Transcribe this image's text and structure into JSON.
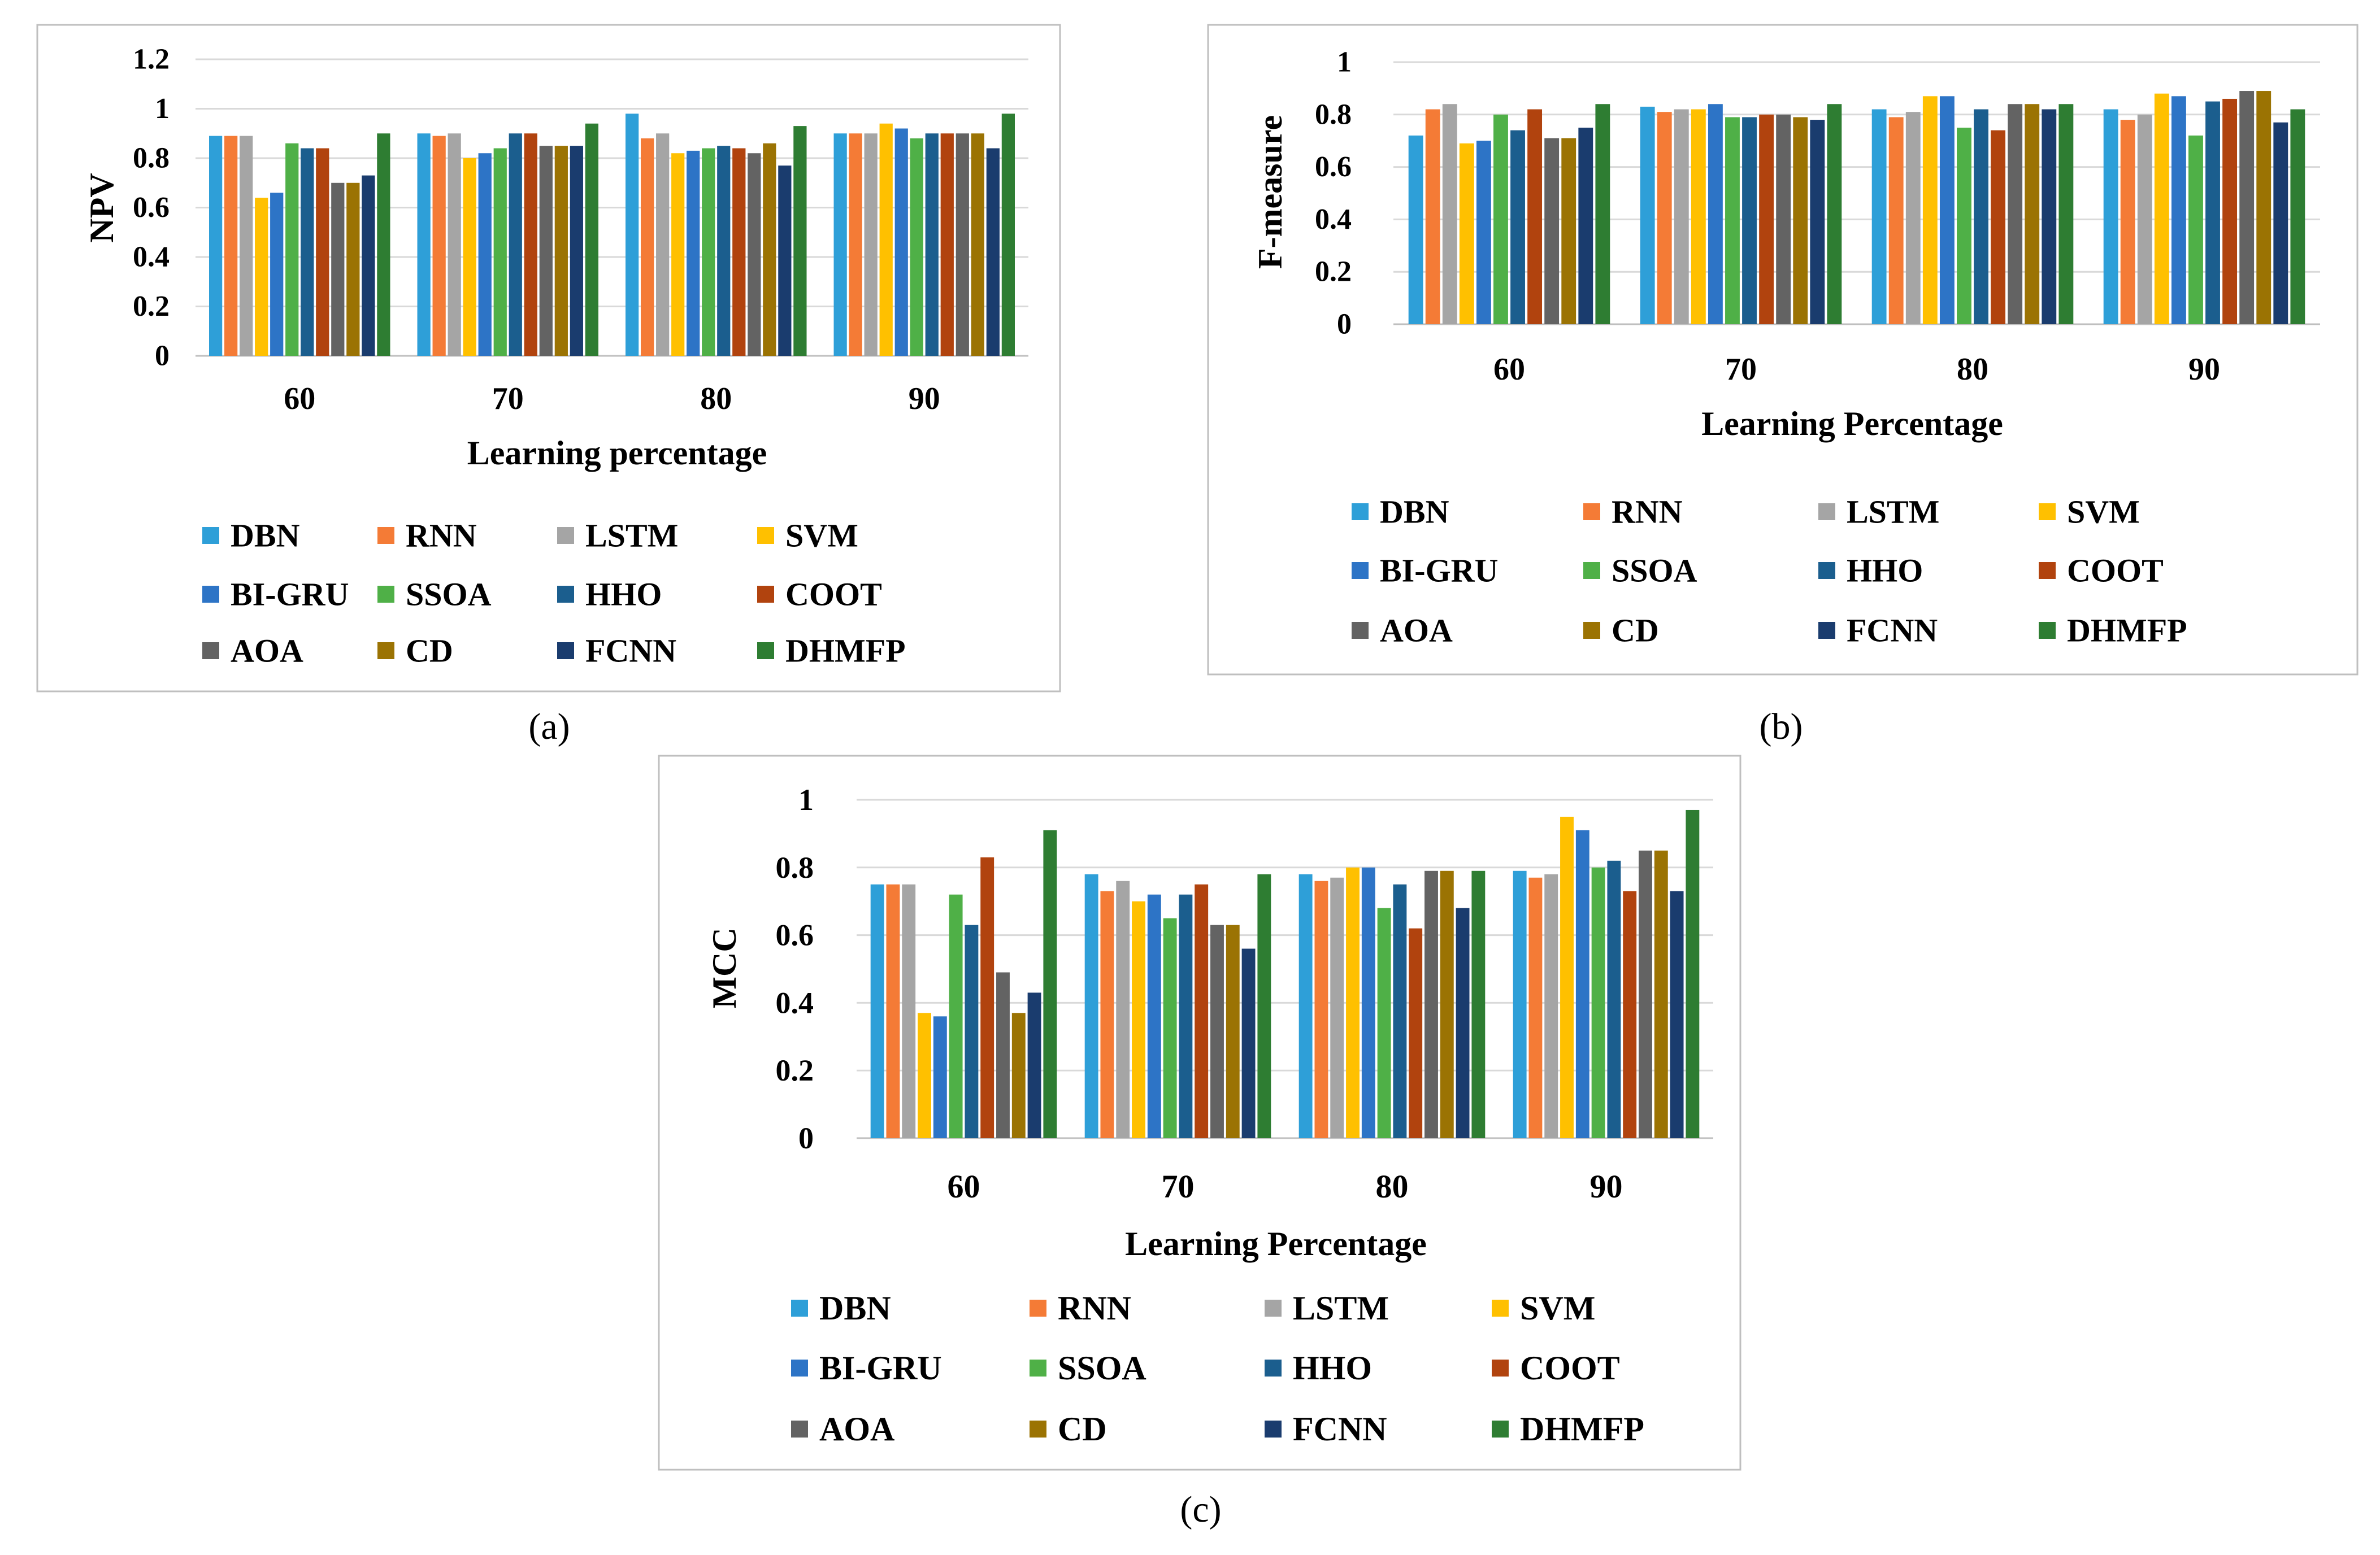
{
  "series_names": [
    "DBN",
    "RNN",
    "LSTM",
    "SVM",
    "BI-GRU",
    "SSOA",
    "HHO",
    "COOT",
    "AOA",
    "CD",
    "FCNN",
    "DHMFP"
  ],
  "series_colors": [
    "#2E9FD8",
    "#F47B36",
    "#A5A5A5",
    "#FFC000",
    "#2D74C6",
    "#4FB047",
    "#1B5E8E",
    "#B1430E",
    "#636363",
    "#9B7303",
    "#1A3C6E",
    "#2E7D32"
  ],
  "chart_data": [
    {
      "type": "bar",
      "panel": "(a)",
      "title": "",
      "xlabel": "Learning percentage",
      "ylabel": "NPV",
      "categories": [
        "60",
        "70",
        "80",
        "90"
      ],
      "ylim": [
        0,
        1.2
      ],
      "yticks": [
        "0",
        "0.2",
        "0.4",
        "0.6",
        "0.8",
        "1",
        "1.2"
      ],
      "legend_position": "bottom",
      "series": [
        {
          "name": "DBN",
          "values": [
            0.89,
            0.9,
            0.98,
            0.9
          ]
        },
        {
          "name": "RNN",
          "values": [
            0.89,
            0.89,
            0.88,
            0.9
          ]
        },
        {
          "name": "LSTM",
          "values": [
            0.89,
            0.9,
            0.9,
            0.9
          ]
        },
        {
          "name": "SVM",
          "values": [
            0.64,
            0.8,
            0.82,
            0.94
          ]
        },
        {
          "name": "BI-GRU",
          "values": [
            0.66,
            0.82,
            0.83,
            0.92
          ]
        },
        {
          "name": "SSOA",
          "values": [
            0.86,
            0.84,
            0.84,
            0.88
          ]
        },
        {
          "name": "HHO",
          "values": [
            0.84,
            0.9,
            0.85,
            0.9
          ]
        },
        {
          "name": "COOT",
          "values": [
            0.84,
            0.9,
            0.84,
            0.9
          ]
        },
        {
          "name": "AOA",
          "values": [
            0.7,
            0.85,
            0.82,
            0.9
          ]
        },
        {
          "name": "CD",
          "values": [
            0.7,
            0.85,
            0.86,
            0.9
          ]
        },
        {
          "name": "FCNN",
          "values": [
            0.73,
            0.85,
            0.77,
            0.84
          ]
        },
        {
          "name": "DHMFP",
          "values": [
            0.9,
            0.94,
            0.93,
            0.98
          ]
        }
      ]
    },
    {
      "type": "bar",
      "panel": "(b)",
      "title": "",
      "xlabel": "Learning Percentage",
      "ylabel": "F-measure",
      "categories": [
        "60",
        "70",
        "80",
        "90"
      ],
      "ylim": [
        0,
        1
      ],
      "yticks": [
        "0",
        "0.2",
        "0.4",
        "0.6",
        "0.8",
        "1"
      ],
      "legend_position": "bottom",
      "series": [
        {
          "name": "DBN",
          "values": [
            0.72,
            0.83,
            0.82,
            0.82
          ]
        },
        {
          "name": "RNN",
          "values": [
            0.82,
            0.81,
            0.79,
            0.78
          ]
        },
        {
          "name": "LSTM",
          "values": [
            0.84,
            0.82,
            0.81,
            0.8
          ]
        },
        {
          "name": "SVM",
          "values": [
            0.69,
            0.82,
            0.87,
            0.88
          ]
        },
        {
          "name": "BI-GRU",
          "values": [
            0.7,
            0.84,
            0.87,
            0.87
          ]
        },
        {
          "name": "SSOA",
          "values": [
            0.8,
            0.79,
            0.75,
            0.72
          ]
        },
        {
          "name": "HHO",
          "values": [
            0.74,
            0.79,
            0.82,
            0.85
          ]
        },
        {
          "name": "COOT",
          "values": [
            0.82,
            0.8,
            0.74,
            0.86
          ]
        },
        {
          "name": "AOA",
          "values": [
            0.71,
            0.8,
            0.84,
            0.89
          ]
        },
        {
          "name": "CD",
          "values": [
            0.71,
            0.79,
            0.84,
            0.89
          ]
        },
        {
          "name": "FCNN",
          "values": [
            0.75,
            0.78,
            0.82,
            0.77
          ]
        },
        {
          "name": "DHMFP",
          "values": [
            0.84,
            0.84,
            0.84,
            0.82
          ]
        }
      ]
    },
    {
      "type": "bar",
      "panel": "(c)",
      "title": "",
      "xlabel": "Learning Percentage",
      "ylabel": "MCC",
      "categories": [
        "60",
        "70",
        "80",
        "90"
      ],
      "ylim": [
        0,
        1
      ],
      "yticks": [
        "0",
        "0.2",
        "0.4",
        "0.6",
        "0.8",
        "1"
      ],
      "legend_position": "bottom",
      "series": [
        {
          "name": "DBN",
          "values": [
            0.75,
            0.78,
            0.78,
            0.79
          ]
        },
        {
          "name": "RNN",
          "values": [
            0.75,
            0.73,
            0.76,
            0.77
          ]
        },
        {
          "name": "LSTM",
          "values": [
            0.75,
            0.76,
            0.77,
            0.78
          ]
        },
        {
          "name": "SVM",
          "values": [
            0.37,
            0.7,
            0.8,
            0.95
          ]
        },
        {
          "name": "BI-GRU",
          "values": [
            0.36,
            0.72,
            0.8,
            0.91
          ]
        },
        {
          "name": "SSOA",
          "values": [
            0.72,
            0.65,
            0.68,
            0.8
          ]
        },
        {
          "name": "HHO",
          "values": [
            0.63,
            0.72,
            0.75,
            0.82
          ]
        },
        {
          "name": "COOT",
          "values": [
            0.83,
            0.75,
            0.62,
            0.73
          ]
        },
        {
          "name": "AOA",
          "values": [
            0.49,
            0.63,
            0.79,
            0.85
          ]
        },
        {
          "name": "CD",
          "values": [
            0.37,
            0.63,
            0.79,
            0.85
          ]
        },
        {
          "name": "FCNN",
          "values": [
            0.43,
            0.56,
            0.68,
            0.73
          ]
        },
        {
          "name": "DHMFP",
          "values": [
            0.91,
            0.78,
            0.79,
            0.97
          ]
        }
      ]
    }
  ]
}
